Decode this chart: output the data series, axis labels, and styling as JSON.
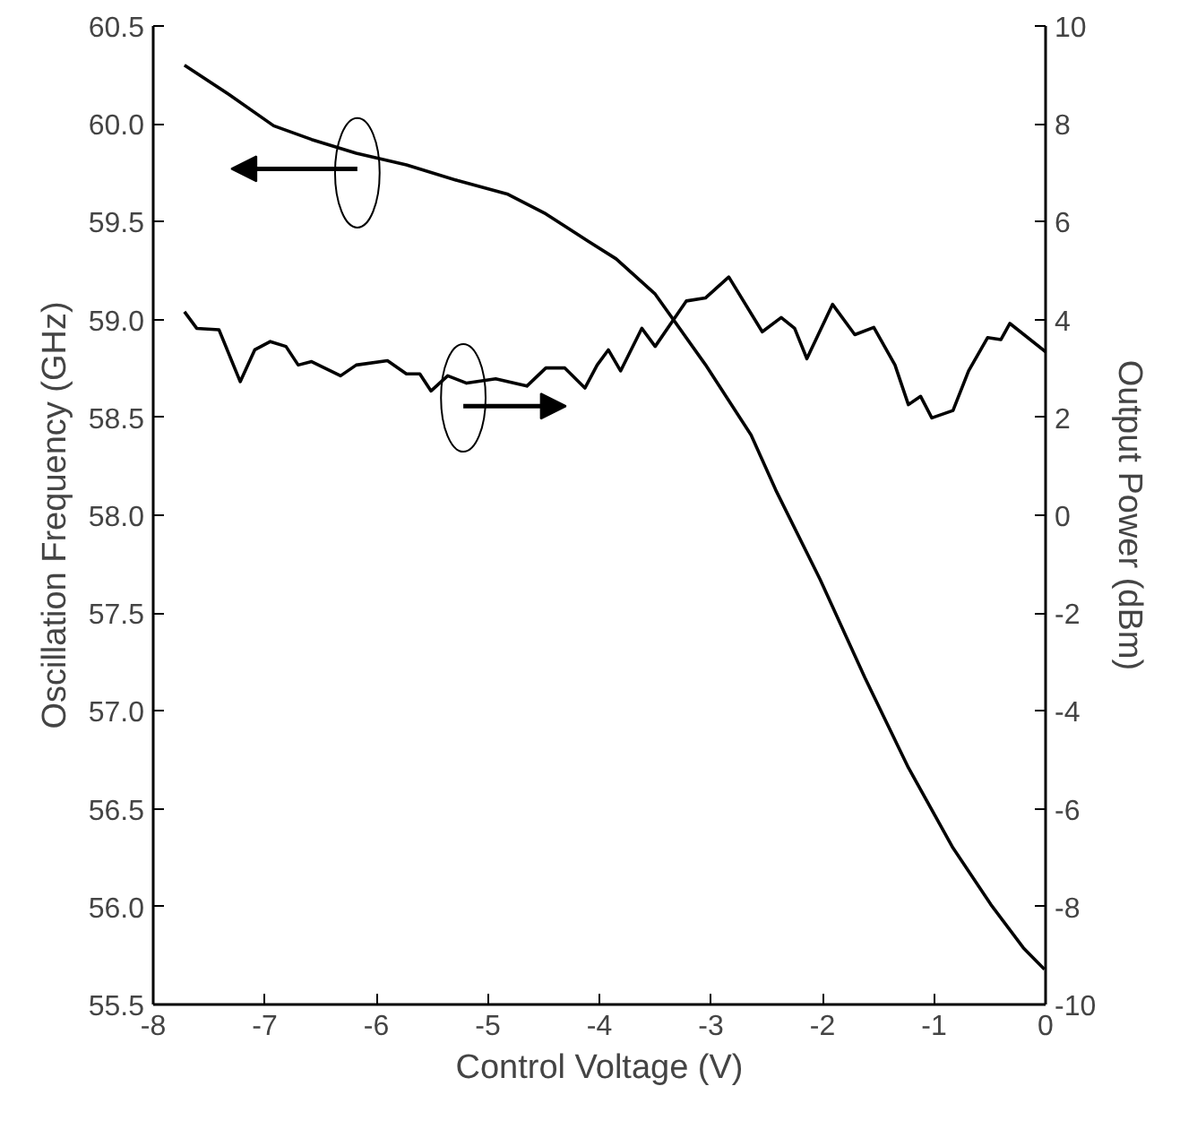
{
  "chart_data": {
    "type": "line",
    "xlabel": "Control Voltage (V)",
    "ylabel": "Oscillation Frequency (GHz)",
    "y2label": "Output Power (dBm)",
    "xlim": [
      -8,
      0
    ],
    "xticks": [
      -8,
      -7,
      -6,
      -5,
      -4,
      -3,
      -2,
      -1,
      0
    ],
    "ylim": [
      55.5,
      60.5
    ],
    "yticks": [
      {
        "value": 55.5,
        "label": "55.5"
      },
      {
        "value": 56,
        "label": "56.0"
      },
      {
        "value": 56.5,
        "label": "56.5"
      },
      {
        "value": 57,
        "label": "57.0"
      },
      {
        "value": 57.5,
        "label": "57.5"
      },
      {
        "value": 58,
        "label": "58.0"
      },
      {
        "value": 58.5,
        "label": "58.5"
      },
      {
        "value": 59,
        "label": "59.0"
      },
      {
        "value": 59.5,
        "label": "59.5"
      },
      {
        "value": 60,
        "label": "60.0"
      },
      {
        "value": 60.5,
        "label": "60.5"
      }
    ],
    "y2lim": [
      -10,
      10
    ],
    "y2ticks": [
      -10,
      -8,
      -6,
      -4,
      -2,
      0,
      2,
      4,
      6,
      8,
      10
    ],
    "marker": "none",
    "line_style": "solid",
    "series": [
      {
        "color": "#000000",
        "x": [
          -7.72,
          -7.32,
          -6.92,
          -6.58,
          -6.18,
          -5.73,
          -5.27,
          -4.82,
          -4.48,
          -4.1,
          -3.85,
          -3.5,
          -3.05,
          -2.64,
          -2.42,
          -2.02,
          -1.62,
          -1.23,
          -0.83,
          -0.49,
          -0.2,
          -0.01
        ],
        "values": [
          60.3,
          60.15,
          59.99,
          59.92,
          59.85,
          59.79,
          59.71,
          59.64,
          59.54,
          59.4,
          59.31,
          59.13,
          58.77,
          58.41,
          58.13,
          57.67,
          57.17,
          56.71,
          56.3,
          56.01,
          55.79,
          55.68
        ]
      },
      {
        "color": "#000000",
        "axis": "y2",
        "x": [
          -7.72,
          -7.61,
          -7.41,
          -7.22,
          -7.09,
          -6.95,
          -6.81,
          -6.7,
          -6.58,
          -6.32,
          -6.18,
          -5.9,
          -5.73,
          -5.61,
          -5.51,
          -5.36,
          -5.19,
          -4.93,
          -4.65,
          -4.48,
          -4.31,
          -4.13,
          -4.02,
          -3.92,
          -3.81,
          -3.62,
          -3.5,
          -3.22,
          -3.05,
          -2.84,
          -2.54,
          -2.37,
          -2.25,
          -2.14,
          -1.91,
          -1.71,
          -1.54,
          -1.35,
          -1.23,
          -1.12,
          -1.02,
          -0.83,
          -0.69,
          -0.52,
          -0.4,
          -0.32,
          0
        ],
        "values": [
          4.16,
          3.82,
          3.79,
          2.73,
          3.38,
          3.55,
          3.45,
          3.07,
          3.14,
          2.85,
          3.07,
          3.16,
          2.89,
          2.89,
          2.54,
          2.85,
          2.7,
          2.79,
          2.64,
          3.01,
          3.01,
          2.6,
          3.07,
          3.38,
          2.95,
          3.82,
          3.45,
          4.38,
          4.44,
          4.87,
          3.75,
          4.04,
          3.82,
          3.2,
          4.31,
          3.69,
          3.84,
          3.07,
          2.26,
          2.43,
          1.99,
          2.14,
          2.95,
          3.63,
          3.59,
          3.92,
          3.34
        ]
      }
    ]
  }
}
